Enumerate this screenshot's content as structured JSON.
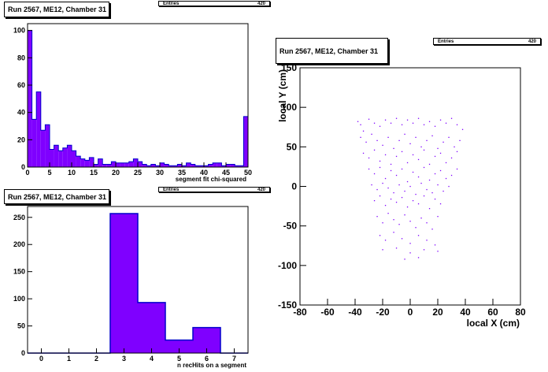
{
  "colors": {
    "fill": "#7f00ff",
    "line": "#0000cc",
    "axis": "#000000"
  },
  "stats": {
    "entries_label": "Entries",
    "entries_value": "420"
  },
  "chart_data": [
    {
      "type": "bar",
      "title": "Run 2567, ME12, Chamber 31",
      "xlabel": "segment fit chi-squared",
      "ylabel": "",
      "xlim": [
        0,
        50
      ],
      "ylim": [
        0,
        105
      ],
      "bin_width": 1,
      "xticks": [
        0,
        5,
        10,
        15,
        20,
        25,
        30,
        35,
        40,
        45,
        50
      ],
      "yticks": [
        0,
        20,
        40,
        60,
        80,
        100
      ],
      "values": [
        100,
        35,
        55,
        27,
        31,
        13,
        16,
        12,
        14,
        16,
        12,
        8,
        6,
        5,
        7,
        2,
        6,
        2,
        2,
        4,
        3,
        3,
        3,
        4,
        6,
        4,
        2,
        1,
        2,
        1,
        3,
        2,
        1,
        1,
        2,
        1,
        3,
        2,
        1,
        1,
        1,
        2,
        3,
        3,
        1,
        2,
        2,
        1,
        1,
        37
      ]
    },
    {
      "type": "bar",
      "title": "Run 2567, ME12, Chamber 31",
      "xlabel": "n recHits on a segment",
      "ylabel": "",
      "xlim": [
        -0.5,
        7.5
      ],
      "ylim": [
        0,
        270
      ],
      "xticks": [
        0,
        1,
        2,
        3,
        4,
        5,
        6,
        7
      ],
      "yticks": [
        0,
        50,
        100,
        150,
        200,
        250
      ],
      "categories": [
        0,
        1,
        2,
        3,
        4,
        5,
        6,
        7
      ],
      "values": [
        0,
        0,
        0,
        257,
        93,
        24,
        47,
        0
      ]
    },
    {
      "type": "scatter",
      "title": "Run 2567, ME12, Chamber 31",
      "xlabel": "local X (cm)",
      "ylabel": "local Y (cm)",
      "xlim": [
        -80,
        80
      ],
      "ylim": [
        -150,
        150
      ],
      "xticks": [
        -80,
        -60,
        -40,
        -20,
        0,
        20,
        40,
        60,
        80
      ],
      "yticks": [
        -150,
        -100,
        -50,
        0,
        50,
        100,
        150
      ],
      "points": [
        [
          -38,
          82
        ],
        [
          -36,
          78
        ],
        [
          -34,
          70
        ],
        [
          -30,
          85
        ],
        [
          -26,
          80
        ],
        [
          -22,
          76
        ],
        [
          -18,
          84
        ],
        [
          -14,
          80
        ],
        [
          -10,
          86
        ],
        [
          -6,
          78
        ],
        [
          -2,
          84
        ],
        [
          2,
          80
        ],
        [
          6,
          86
        ],
        [
          10,
          78
        ],
        [
          14,
          82
        ],
        [
          18,
          76
        ],
        [
          22,
          84
        ],
        [
          26,
          80
        ],
        [
          30,
          86
        ],
        [
          34,
          78
        ],
        [
          38,
          72
        ],
        [
          -36,
          62
        ],
        [
          -32,
          56
        ],
        [
          -28,
          66
        ],
        [
          -24,
          58
        ],
        [
          -20,
          52
        ],
        [
          -16,
          62
        ],
        [
          -12,
          48
        ],
        [
          -8,
          58
        ],
        [
          -4,
          66
        ],
        [
          0,
          54
        ],
        [
          4,
          62
        ],
        [
          8,
          50
        ],
        [
          12,
          58
        ],
        [
          16,
          64
        ],
        [
          20,
          48
        ],
        [
          24,
          56
        ],
        [
          28,
          62
        ],
        [
          32,
          50
        ],
        [
          36,
          58
        ],
        [
          -34,
          42
        ],
        [
          -30,
          36
        ],
        [
          -26,
          46
        ],
        [
          -22,
          32
        ],
        [
          -18,
          40
        ],
        [
          -14,
          28
        ],
        [
          -10,
          38
        ],
        [
          -6,
          44
        ],
        [
          -2,
          30
        ],
        [
          2,
          40
        ],
        [
          6,
          34
        ],
        [
          10,
          46
        ],
        [
          14,
          28
        ],
        [
          18,
          38
        ],
        [
          22,
          42
        ],
        [
          26,
          30
        ],
        [
          30,
          36
        ],
        [
          34,
          44
        ],
        [
          -30,
          22
        ],
        [
          -26,
          16
        ],
        [
          -22,
          24
        ],
        [
          -18,
          10
        ],
        [
          -14,
          20
        ],
        [
          -10,
          14
        ],
        [
          -6,
          22
        ],
        [
          -2,
          6
        ],
        [
          2,
          18
        ],
        [
          6,
          12
        ],
        [
          10,
          24
        ],
        [
          14,
          8
        ],
        [
          18,
          16
        ],
        [
          22,
          20
        ],
        [
          26,
          10
        ],
        [
          30,
          14
        ],
        [
          34,
          22
        ],
        [
          -28,
          2
        ],
        [
          -24,
          -4
        ],
        [
          -20,
          4
        ],
        [
          -16,
          -2
        ],
        [
          -12,
          -8
        ],
        [
          -8,
          2
        ],
        [
          -4,
          -6
        ],
        [
          0,
          0
        ],
        [
          4,
          -10
        ],
        [
          8,
          4
        ],
        [
          12,
          -4
        ],
        [
          16,
          -8
        ],
        [
          20,
          2
        ],
        [
          24,
          -6
        ],
        [
          28,
          0
        ],
        [
          -26,
          -18
        ],
        [
          -22,
          -12
        ],
        [
          -18,
          -24
        ],
        [
          -14,
          -16
        ],
        [
          -10,
          -20
        ],
        [
          -6,
          -14
        ],
        [
          -2,
          -26
        ],
        [
          2,
          -18
        ],
        [
          6,
          -22
        ],
        [
          10,
          -12
        ],
        [
          14,
          -28
        ],
        [
          18,
          -16
        ],
        [
          22,
          -22
        ],
        [
          -24,
          -38
        ],
        [
          -20,
          -46
        ],
        [
          -16,
          -34
        ],
        [
          -12,
          -42
        ],
        [
          -8,
          -48
        ],
        [
          -4,
          -36
        ],
        [
          0,
          -44
        ],
        [
          4,
          -52
        ],
        [
          8,
          -40
        ],
        [
          12,
          -46
        ],
        [
          16,
          -54
        ],
        [
          20,
          -38
        ],
        [
          -22,
          -62
        ],
        [
          -18,
          -68
        ],
        [
          -12,
          -58
        ],
        [
          -6,
          -66
        ],
        [
          0,
          -72
        ],
        [
          6,
          -62
        ],
        [
          12,
          -68
        ],
        [
          18,
          -74
        ],
        [
          -20,
          -80
        ],
        [
          -10,
          -78
        ],
        [
          0,
          -84
        ],
        [
          10,
          -80
        ],
        [
          20,
          -82
        ],
        [
          -4,
          -92
        ],
        [
          6,
          -90
        ]
      ]
    }
  ]
}
